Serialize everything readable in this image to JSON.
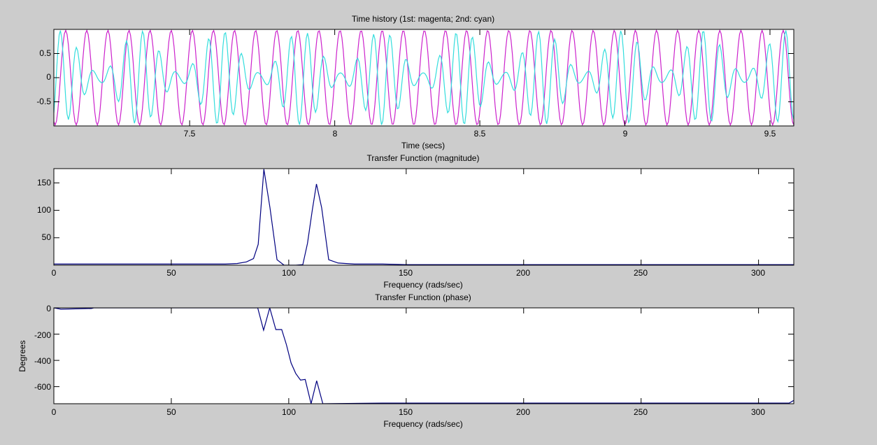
{
  "figure": {
    "background": "#cccccc"
  },
  "chart_data": [
    {
      "type": "line",
      "title": "Time history (1st: magenta; 2nd: cyan)",
      "xlabel": "Time (secs)",
      "ylabel": "",
      "xlim": [
        7.032,
        9.582
      ],
      "ylim": [
        -1.0,
        1.0
      ],
      "xticks": [
        7.5,
        8,
        8.5,
        9,
        9.5
      ],
      "xtick_labels": [
        "7.5",
        "8",
        "8.5",
        "9",
        "9.5"
      ],
      "yticks": [
        0.5,
        0,
        -0.5
      ],
      "ytick_labels": [
        "0.5",
        "0",
        "-0.5"
      ],
      "grid": false,
      "legend": "none (colors described in title)",
      "series": [
        {
          "name": "1st",
          "color": "#cc22cc",
          "description": "near-constant amplitude sinusoid (~1.0), approx 13.6 Hz (≈86 rad/s)",
          "amplitude": 0.98,
          "freq_hz": 13.75
        },
        {
          "name": "2nd",
          "color": "#33dddd",
          "description": "beating sinusoid, envelope 0.1–1.0, carrier ≈17.5 Hz",
          "amplitude": 0.98,
          "freq_hz": 17.6,
          "beat_hz": 3.6
        }
      ]
    },
    {
      "type": "line",
      "title": "Transfer Function (magnitude)",
      "xlabel": "Frequency (rads/sec)",
      "ylabel": "",
      "xlim": [
        0,
        315
      ],
      "ylim": [
        0,
        176
      ],
      "xticks": [
        0,
        50,
        100,
        150,
        200,
        250,
        300
      ],
      "xtick_labels": [
        "0",
        "50",
        "100",
        "150",
        "200",
        "250",
        "300"
      ],
      "yticks": [
        150,
        100,
        50
      ],
      "ytick_labels": [
        "150",
        "100",
        "50"
      ],
      "grid": false,
      "series": [
        {
          "name": "magnitude",
          "color": "#000080",
          "x": [
            0,
            73,
            78,
            82,
            85,
            87,
            89.4,
            92,
            95,
            98,
            103,
            106,
            108,
            110,
            111.8,
            114,
            117,
            121,
            128,
            140,
            150,
            200,
            250,
            300,
            315
          ],
          "y": [
            2,
            2,
            3,
            6,
            12,
            38,
            175,
            105,
            10,
            0,
            0,
            1,
            40,
            100,
            148,
            105,
            10,
            4,
            2,
            2,
            1,
            1,
            1,
            1,
            1
          ]
        }
      ]
    },
    {
      "type": "line",
      "title": "Transfer Function (phase)",
      "xlabel": "Frequency (rads/sec)",
      "ylabel": "Degrees",
      "xlim": [
        0,
        315
      ],
      "ylim": [
        -730,
        0
      ],
      "xticks": [
        0,
        50,
        100,
        150,
        200,
        250,
        300
      ],
      "xtick_labels": [
        "0",
        "50",
        "100",
        "150",
        "200",
        "250",
        "300"
      ],
      "yticks": [
        0,
        -200,
        -400,
        -600
      ],
      "ytick_labels": [
        "0",
        "-200",
        "-400",
        "-600"
      ],
      "grid": false,
      "series": [
        {
          "name": "phase",
          "color": "#000080",
          "x": [
            0,
            3,
            16,
            17,
            86.8,
            89.3,
            91.9,
            94.5,
            97,
            99,
            101,
            103,
            105,
            107,
            109.5,
            111.9,
            114.5,
            140,
            200,
            250,
            300,
            313,
            315
          ],
          "y": [
            0,
            -10,
            -5,
            0,
            0,
            -170,
            0,
            -165,
            -165,
            -280,
            -420,
            -500,
            -550,
            -545,
            -730,
            -555,
            -730,
            -725,
            -725,
            -725,
            -725,
            -725,
            -705
          ]
        }
      ]
    }
  ]
}
